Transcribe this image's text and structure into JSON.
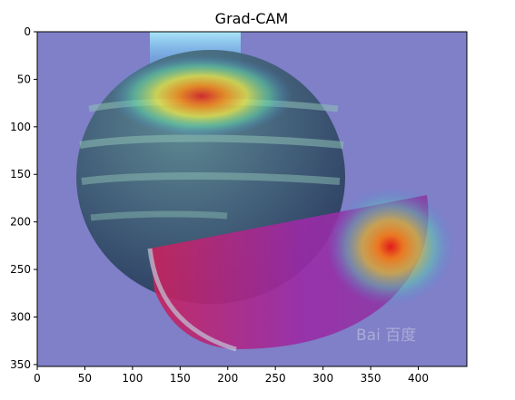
{
  "figure": {
    "title": "Grad-CAM",
    "watermark": "Bai 百度"
  },
  "chart_data": {
    "type": "heatmap",
    "title": "Grad-CAM",
    "xlabel": "",
    "ylabel": "",
    "xlim": [
      0,
      451
    ],
    "ylim": [
      352,
      0
    ],
    "x_ticks": [
      0,
      50,
      100,
      150,
      200,
      250,
      300,
      350,
      400
    ],
    "y_ticks": [
      0,
      50,
      100,
      150,
      200,
      250,
      300,
      350
    ],
    "grid": false,
    "colormap": "jet",
    "hotspots": [
      {
        "x": 175,
        "y": 72,
        "level": 0.9
      },
      {
        "x": 372,
        "y": 228,
        "level": 1.0
      }
    ],
    "colors": {
      "background_overlay": "#7f80c8",
      "frame": "#000000"
    }
  }
}
